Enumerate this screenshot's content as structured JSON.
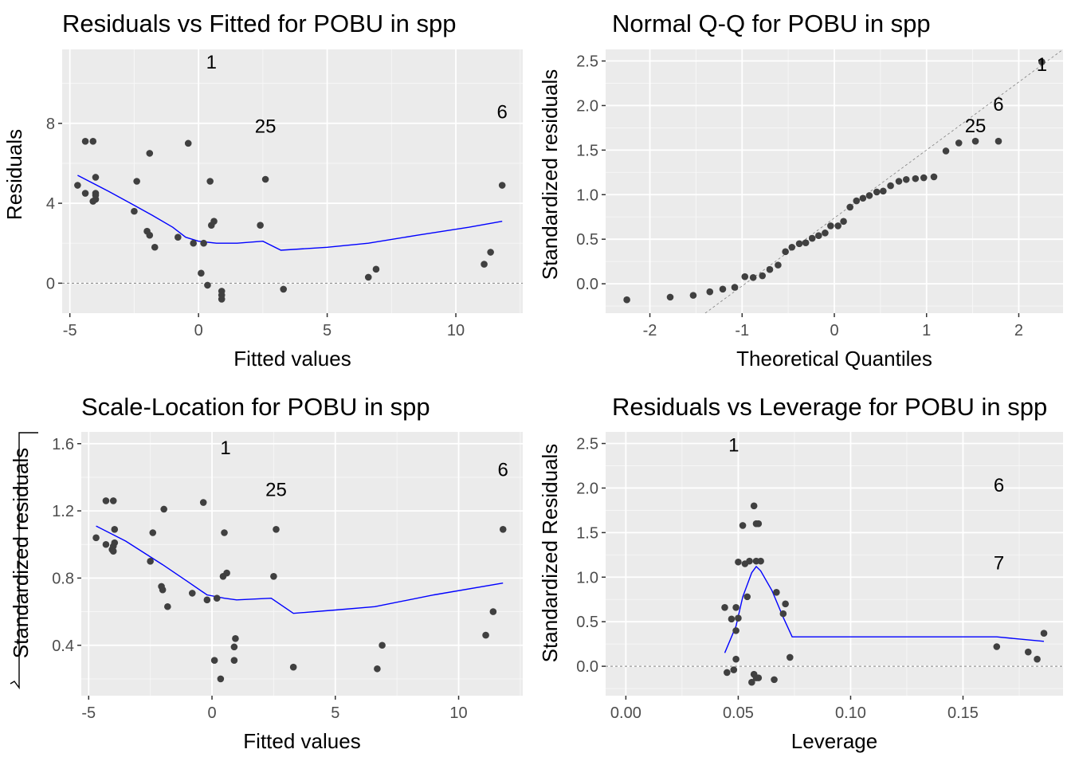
{
  "chart_data": [
    {
      "type": "scatter",
      "title": "Residuals vs Fitted for POBU in spp",
      "xlabel": "Fitted values",
      "ylabel": "Residuals",
      "xlim": [
        -5.3,
        12.6
      ],
      "ylim": [
        -1.5,
        11.7
      ],
      "xticks": [
        -5,
        0,
        5,
        10
      ],
      "yticks": [
        0,
        4,
        8
      ],
      "hline": 0,
      "points": [
        [
          -4.7,
          4.9
        ],
        [
          -4.4,
          4.5
        ],
        [
          -4.4,
          7.1
        ],
        [
          -4.1,
          7.1
        ],
        [
          -4.1,
          4.1
        ],
        [
          -4.0,
          4.2
        ],
        [
          -4.0,
          4.4
        ],
        [
          -4.0,
          4.5
        ],
        [
          -4.0,
          5.3
        ],
        [
          -2.5,
          3.6
        ],
        [
          -2.4,
          5.1
        ],
        [
          -2.0,
          2.6
        ],
        [
          -1.9,
          2.4
        ],
        [
          -1.9,
          6.5
        ],
        [
          -1.7,
          1.8
        ],
        [
          -0.8,
          2.3
        ],
        [
          -0.4,
          7.0
        ],
        [
          -0.2,
          2.0
        ],
        [
          0.1,
          0.5
        ],
        [
          0.2,
          2.0
        ],
        [
          0.35,
          -0.1
        ],
        [
          0.45,
          5.1
        ],
        [
          0.5,
          2.9
        ],
        [
          0.6,
          3.1
        ],
        [
          0.9,
          -0.4
        ],
        [
          0.9,
          -0.6
        ],
        [
          0.9,
          -0.8
        ],
        [
          2.4,
          2.9
        ],
        [
          2.6,
          5.2
        ],
        [
          3.3,
          -0.3
        ],
        [
          6.6,
          0.3
        ],
        [
          6.9,
          0.7
        ],
        [
          11.1,
          0.95
        ],
        [
          11.35,
          1.55
        ],
        [
          11.8,
          4.9
        ]
      ],
      "labels": [
        {
          "text": "1",
          "x": 0.5,
          "y": 11.1
        },
        {
          "text": "25",
          "x": 2.6,
          "y": 7.9
        },
        {
          "text": "6",
          "x": 11.8,
          "y": 8.6
        }
      ],
      "smooth": [
        [
          -4.7,
          5.4
        ],
        [
          -3.5,
          4.6
        ],
        [
          -2.5,
          3.9
        ],
        [
          -1.8,
          3.4
        ],
        [
          -1.0,
          2.8
        ],
        [
          -0.5,
          2.3
        ],
        [
          0.0,
          2.1
        ],
        [
          0.7,
          2.0
        ],
        [
          1.5,
          2.0
        ],
        [
          2.5,
          2.1
        ],
        [
          3.2,
          1.65
        ],
        [
          5.0,
          1.8
        ],
        [
          6.6,
          2.0
        ],
        [
          8.5,
          2.4
        ],
        [
          10.5,
          2.8
        ],
        [
          11.8,
          3.1
        ]
      ]
    },
    {
      "type": "scatter",
      "title": "Normal Q-Q for POBU in spp",
      "xlabel": "Theoretical Quantiles",
      "ylabel": "Standardized residuals",
      "xlim": [
        -2.48,
        2.48
      ],
      "ylim": [
        -0.33,
        2.63
      ],
      "xticks": [
        -2,
        -1,
        0,
        1,
        2
      ],
      "yticks": [
        0.0,
        0.5,
        1.0,
        1.5,
        2.0,
        2.5
      ],
      "refline": [
        [
          -1.4,
          -0.33
        ],
        [
          2.48,
          2.63
        ]
      ],
      "points": [
        [
          -2.25,
          -0.18
        ],
        [
          -1.78,
          -0.15
        ],
        [
          -1.53,
          -0.13
        ],
        [
          -1.35,
          -0.09
        ],
        [
          -1.21,
          -0.06
        ],
        [
          -1.08,
          -0.04
        ],
        [
          -0.97,
          0.08
        ],
        [
          -0.88,
          0.07
        ],
        [
          -0.78,
          0.09
        ],
        [
          -0.7,
          0.16
        ],
        [
          -0.61,
          0.21
        ],
        [
          -0.53,
          0.36
        ],
        [
          -0.46,
          0.41
        ],
        [
          -0.38,
          0.45
        ],
        [
          -0.31,
          0.46
        ],
        [
          -0.24,
          0.51
        ],
        [
          -0.17,
          0.54
        ],
        [
          -0.1,
          0.57
        ],
        [
          -0.04,
          0.65
        ],
        [
          0.04,
          0.65
        ],
        [
          0.1,
          0.7
        ],
        [
          0.17,
          0.86
        ],
        [
          0.24,
          0.93
        ],
        [
          0.31,
          0.96
        ],
        [
          0.38,
          0.99
        ],
        [
          0.46,
          1.03
        ],
        [
          0.53,
          1.04
        ],
        [
          0.61,
          1.1
        ],
        [
          0.7,
          1.15
        ],
        [
          0.78,
          1.17
        ],
        [
          0.88,
          1.18
        ],
        [
          0.97,
          1.19
        ],
        [
          1.08,
          1.2
        ],
        [
          1.21,
          1.49
        ],
        [
          1.35,
          1.58
        ],
        [
          1.53,
          1.6
        ],
        [
          1.78,
          1.6
        ],
        [
          2.25,
          2.49
        ]
      ],
      "labels": [
        {
          "text": "1",
          "x": 2.25,
          "y": 2.47
        },
        {
          "text": "6",
          "x": 1.78,
          "y": 2.02
        },
        {
          "text": "25",
          "x": 1.53,
          "y": 1.78
        }
      ]
    },
    {
      "type": "scatter",
      "title": "Scale-Location for POBU in spp",
      "xlabel": "Fitted values",
      "ylabel": "Standardized residuals",
      "xlim": [
        -5.3,
        12.6
      ],
      "ylim": [
        0.1,
        1.67
      ],
      "xticks": [
        -5,
        0,
        5,
        10
      ],
      "yticks": [
        0.4,
        0.8,
        1.2,
        1.6
      ],
      "points": [
        [
          -4.7,
          1.04
        ],
        [
          -4.3,
          1.0
        ],
        [
          -4.3,
          1.26
        ],
        [
          -4.0,
          1.26
        ],
        [
          -4.05,
          0.97
        ],
        [
          -4.0,
          0.96
        ],
        [
          -4.0,
          0.99
        ],
        [
          -3.95,
          1.01
        ],
        [
          -3.95,
          1.09
        ],
        [
          -2.5,
          0.9
        ],
        [
          -2.4,
          1.07
        ],
        [
          -2.05,
          0.75
        ],
        [
          -2.0,
          0.73
        ],
        [
          -1.95,
          1.21
        ],
        [
          -1.8,
          0.63
        ],
        [
          -0.8,
          0.71
        ],
        [
          -0.35,
          1.25
        ],
        [
          -0.2,
          0.67
        ],
        [
          0.1,
          0.31
        ],
        [
          0.2,
          0.68
        ],
        [
          0.35,
          0.2
        ],
        [
          0.45,
          0.81
        ],
        [
          0.5,
          1.07
        ],
        [
          0.6,
          0.83
        ],
        [
          0.9,
          0.31
        ],
        [
          0.9,
          0.39
        ],
        [
          0.95,
          0.44
        ],
        [
          2.5,
          0.81
        ],
        [
          2.6,
          1.09
        ],
        [
          3.3,
          0.27
        ],
        [
          6.7,
          0.26
        ],
        [
          6.9,
          0.4
        ],
        [
          11.1,
          0.46
        ],
        [
          11.4,
          0.6
        ],
        [
          11.8,
          1.09
        ]
      ],
      "labels": [
        {
          "text": "1",
          "x": 0.55,
          "y": 1.58
        },
        {
          "text": "25",
          "x": 2.6,
          "y": 1.33
        },
        {
          "text": "6",
          "x": 11.8,
          "y": 1.45
        }
      ],
      "smooth": [
        [
          -4.7,
          1.11
        ],
        [
          -3.5,
          1.02
        ],
        [
          -2.0,
          0.88
        ],
        [
          -1.0,
          0.78
        ],
        [
          -0.2,
          0.7
        ],
        [
          0.5,
          0.68
        ],
        [
          1.0,
          0.67
        ],
        [
          2.4,
          0.68
        ],
        [
          3.3,
          0.59
        ],
        [
          5.0,
          0.61
        ],
        [
          6.6,
          0.63
        ],
        [
          9.0,
          0.7
        ],
        [
          11.8,
          0.77
        ]
      ]
    },
    {
      "type": "scatter",
      "title": "Residuals vs Leverage for POBU in spp",
      "xlabel": "Leverage",
      "ylabel": "Standardized Residuals",
      "xlim": [
        -0.009,
        0.1945
      ],
      "ylim": [
        -0.33,
        2.63
      ],
      "xticks": [
        0.0,
        0.05,
        0.1,
        0.15
      ],
      "ytick_labels": [
        "0.0",
        "0.5",
        "1.0",
        "1.5",
        "2.0",
        "2.5"
      ],
      "xtick_labels": [
        "0.00",
        "0.05",
        "0.10",
        "0.15"
      ],
      "yticks": [
        0.0,
        0.5,
        1.0,
        1.5,
        2.0,
        2.5
      ],
      "hline": 0,
      "points": [
        [
          0.044,
          0.66
        ],
        [
          0.045,
          -0.07
        ],
        [
          0.047,
          0.53
        ],
        [
          0.048,
          -0.04
        ],
        [
          0.049,
          0.08
        ],
        [
          0.049,
          0.66
        ],
        [
          0.049,
          0.4
        ],
        [
          0.05,
          1.17
        ],
        [
          0.05,
          0.54
        ],
        [
          0.052,
          1.58
        ],
        [
          0.053,
          1.15
        ],
        [
          0.054,
          0.78
        ],
        [
          0.055,
          1.18
        ],
        [
          0.056,
          -0.18
        ],
        [
          0.057,
          1.8
        ],
        [
          0.057,
          -0.09
        ],
        [
          0.058,
          -0.13
        ],
        [
          0.058,
          1.6
        ],
        [
          0.058,
          1.18
        ],
        [
          0.059,
          1.6
        ],
        [
          0.059,
          -0.13
        ],
        [
          0.06,
          1.18
        ],
        [
          0.066,
          -0.15
        ],
        [
          0.067,
          0.83
        ],
        [
          0.07,
          0.59
        ],
        [
          0.071,
          0.7
        ],
        [
          0.073,
          0.1
        ],
        [
          0.165,
          0.22
        ],
        [
          0.179,
          0.16
        ],
        [
          0.183,
          0.08
        ],
        [
          0.186,
          0.37
        ]
      ],
      "labels": [
        {
          "text": "1",
          "x": 0.048,
          "y": 2.49
        },
        {
          "text": "6",
          "x": 0.166,
          "y": 2.04
        },
        {
          "text": "7",
          "x": 0.166,
          "y": 1.17
        }
      ],
      "smooth": [
        [
          0.044,
          0.15
        ],
        [
          0.049,
          0.45
        ],
        [
          0.052,
          0.78
        ],
        [
          0.056,
          1.05
        ],
        [
          0.058,
          1.12
        ],
        [
          0.06,
          1.07
        ],
        [
          0.065,
          0.85
        ],
        [
          0.07,
          0.55
        ],
        [
          0.074,
          0.33
        ],
        [
          0.1,
          0.33
        ],
        [
          0.15,
          0.33
        ],
        [
          0.165,
          0.33
        ],
        [
          0.186,
          0.28
        ]
      ]
    }
  ]
}
